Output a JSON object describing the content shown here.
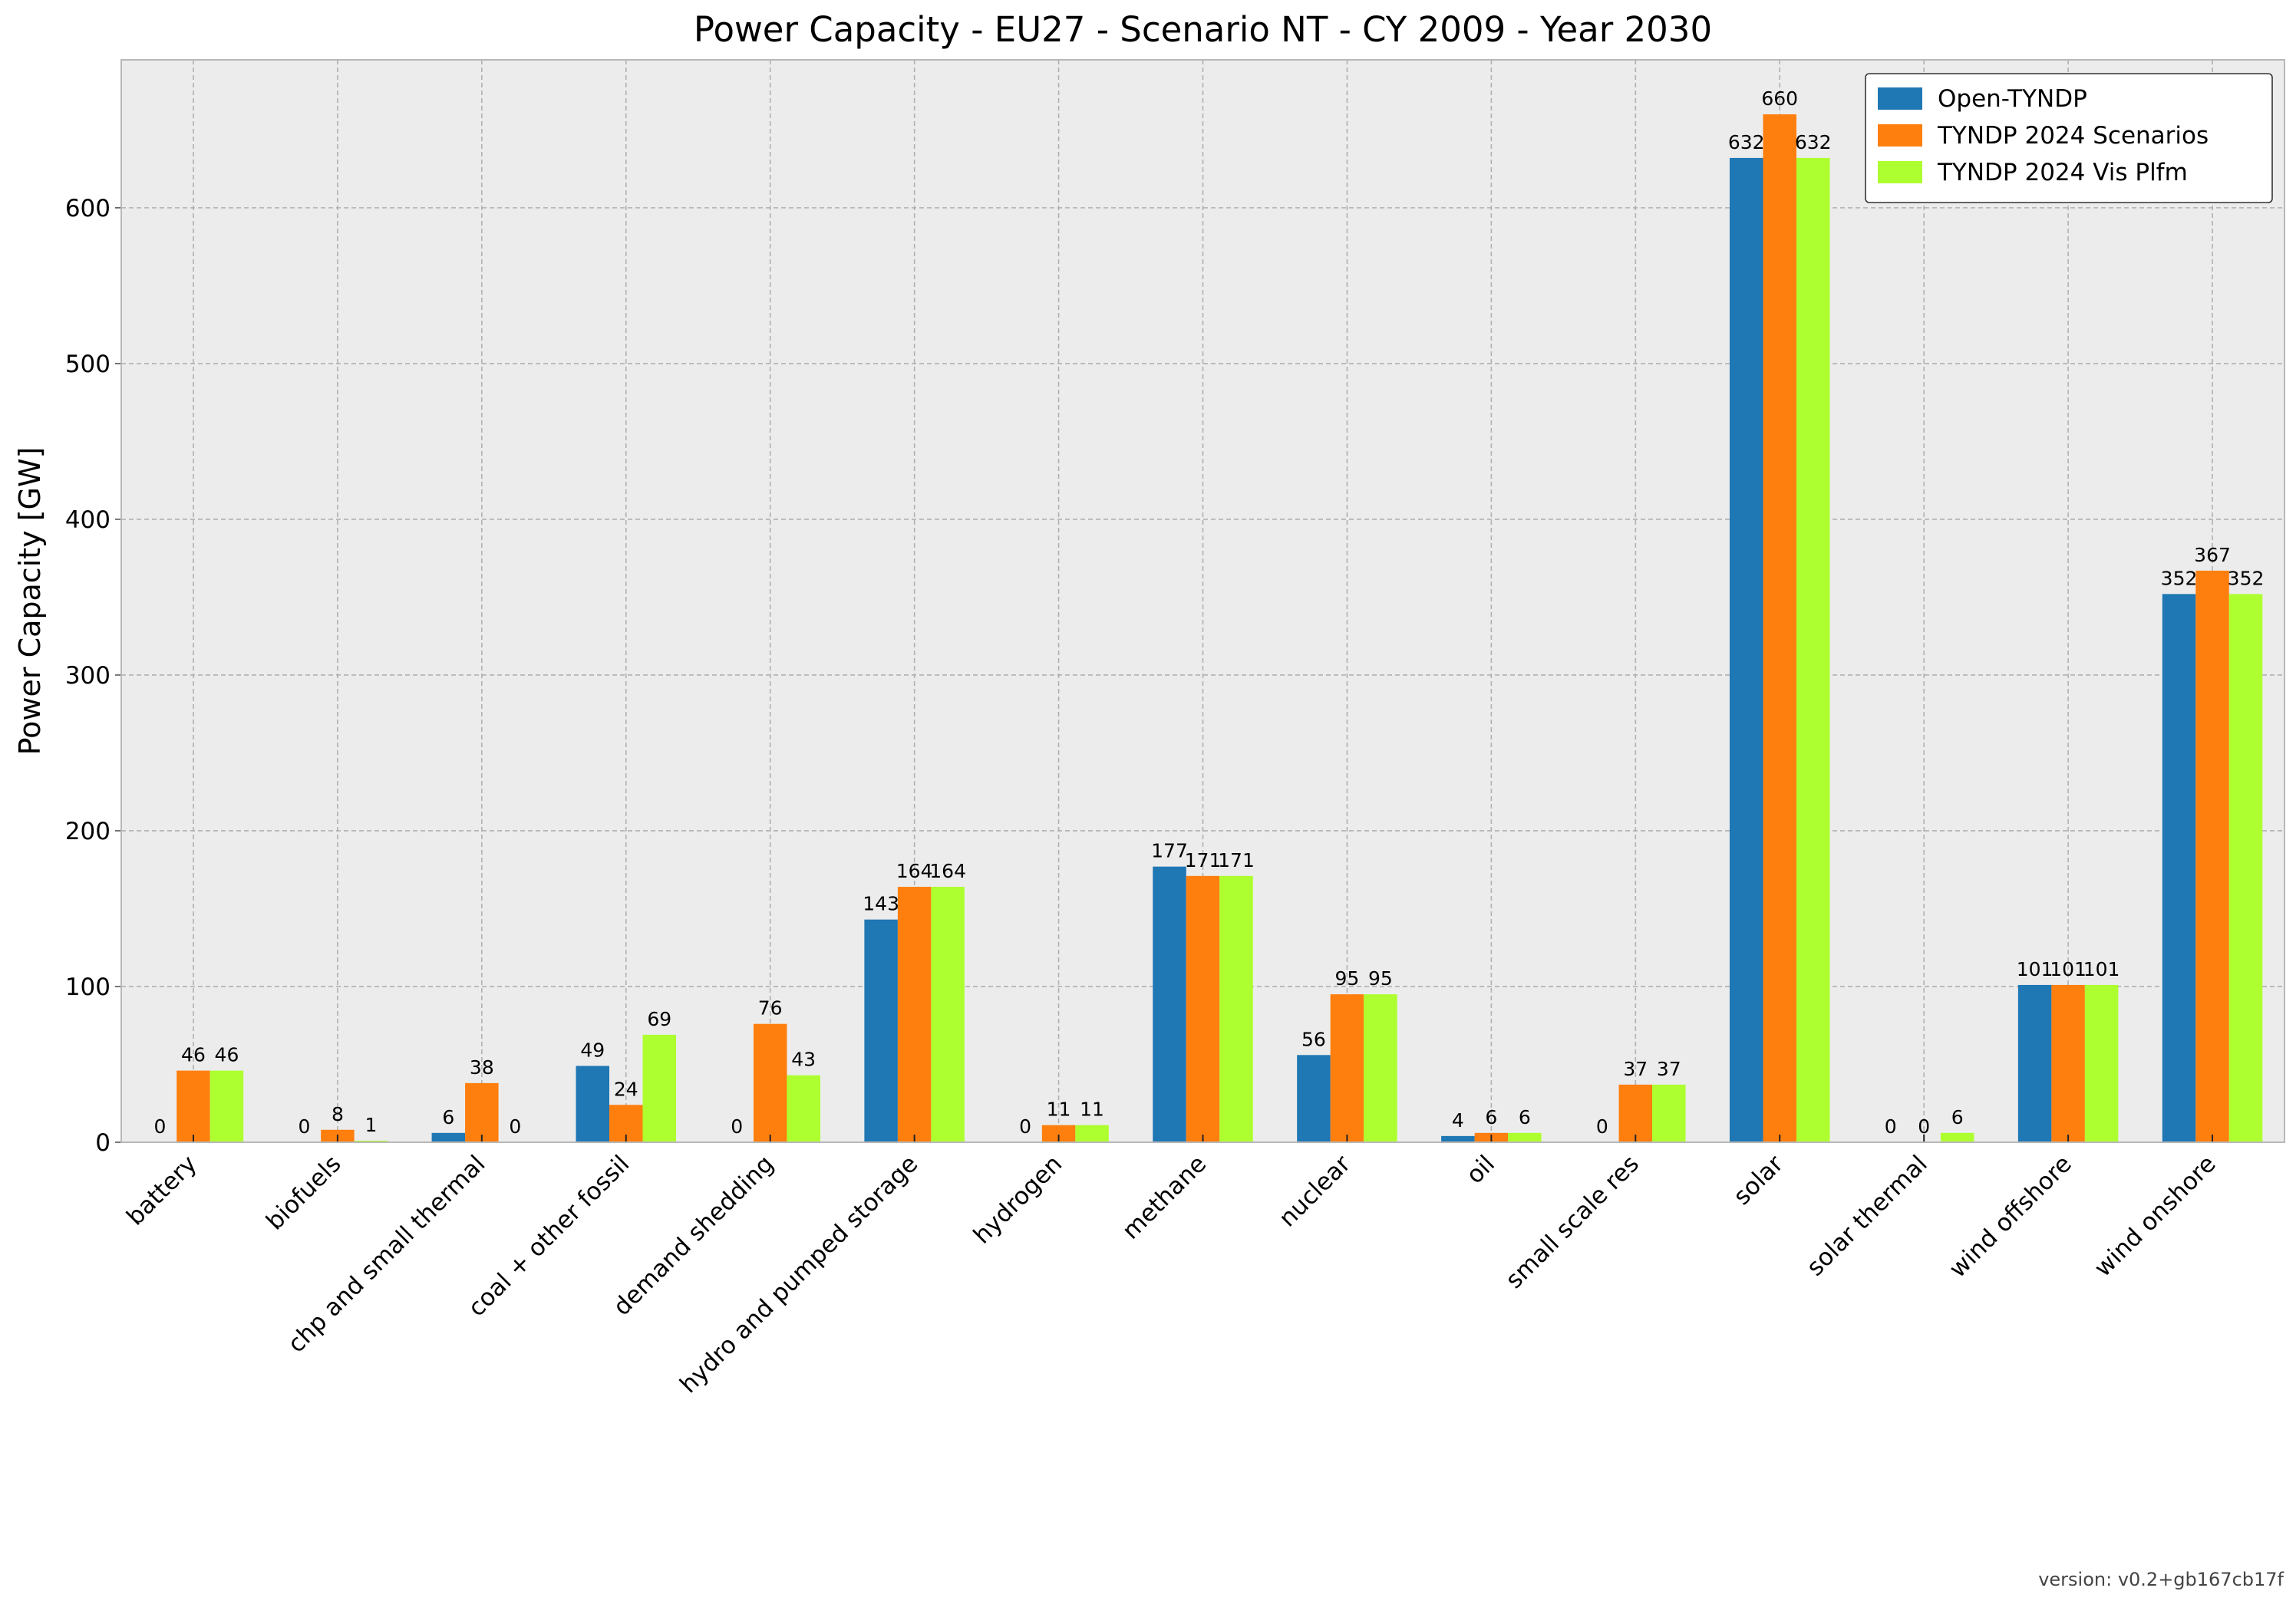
{
  "chart_data": {
    "type": "bar",
    "title": "Power Capacity - EU27 - Scenario NT - CY 2009 - Year 2030",
    "xlabel": "",
    "ylabel": "Power Capacity [GW]",
    "ylim": [
      0,
      695
    ],
    "yticks": [
      0,
      100,
      200,
      300,
      400,
      500,
      600
    ],
    "grid": true,
    "legend_position": "top-right",
    "categories": [
      "battery",
      "biofuels",
      "chp and small thermal",
      "coal + other fossil",
      "demand shedding",
      "hydro and pumped storage",
      "hydrogen",
      "methane",
      "nuclear",
      "oil",
      "small scale res",
      "solar",
      "solar thermal",
      "wind offshore",
      "wind onshore"
    ],
    "series": [
      {
        "name": "Open-TYNDP",
        "color": "#1f77b4",
        "values": [
          0,
          0,
          6,
          49,
          0,
          143,
          0,
          177,
          56,
          4,
          0,
          632,
          0,
          101,
          352
        ],
        "labels": [
          "0",
          "0",
          "6",
          "49",
          "0",
          "143",
          "0",
          "177",
          "56",
          "4",
          "0",
          "632",
          "0",
          "101",
          "352"
        ]
      },
      {
        "name": "TYNDP 2024 Scenarios",
        "color": "#ff7f0e",
        "values": [
          46,
          8,
          38,
          24,
          76,
          164,
          11,
          171,
          95,
          6,
          37,
          660,
          0,
          101,
          367
        ],
        "labels": [
          "46",
          "8",
          "38",
          "24",
          "76",
          "164",
          "11",
          "171",
          "95",
          "6",
          "37",
          "660",
          "0",
          "101",
          "367"
        ]
      },
      {
        "name": "TYNDP 2024 Vis Plfm",
        "color": "#adff2f",
        "values": [
          46,
          1,
          0,
          69,
          43,
          164,
          11,
          171,
          95,
          6,
          37,
          632,
          6,
          101,
          352
        ],
        "labels": [
          "46",
          "1",
          "0",
          "69",
          "43",
          "164",
          "11",
          "171",
          "95",
          "6",
          "37",
          "632",
          "6",
          "101",
          "352"
        ]
      }
    ]
  },
  "footer": {
    "version": "version: v0.2+gb167cb17f"
  }
}
